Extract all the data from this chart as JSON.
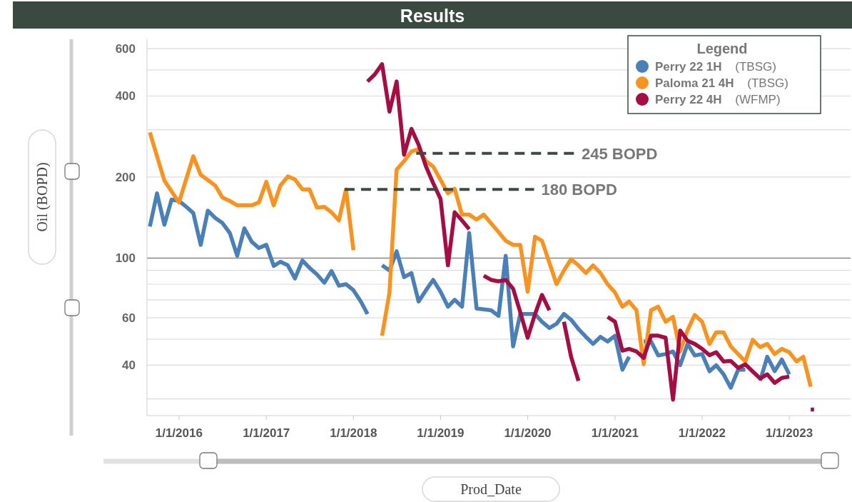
{
  "chart_data": {
    "type": "line",
    "title": "Results",
    "xlabel": "Prod_Date",
    "ylabel": "Oil (BOPD)",
    "legend_title": "Legend",
    "legend": "top right",
    "grid": "y",
    "log": "y",
    "line_style": "solid",
    "marker": "none",
    "xlim": [
      "2015-08-20",
      "2023-09-15"
    ],
    "xticks": [
      {
        "value": "2016-01-01",
        "label": "1/1/2016"
      },
      {
        "value": "2017-01-01",
        "label": "1/1/2017"
      },
      {
        "value": "2018-01-01",
        "label": "1/1/2018"
      },
      {
        "value": "2019-01-01",
        "label": "1/1/2019"
      },
      {
        "value": "2020-01-01",
        "label": "1/1/2020"
      },
      {
        "value": "2021-01-01",
        "label": "1/1/2021"
      },
      {
        "value": "2022-01-01",
        "label": "1/1/2022"
      },
      {
        "value": "2023-01-01",
        "label": "1/1/2023"
      }
    ],
    "ylim": [
      26,
      650
    ],
    "yticks": [
      {
        "value": 30,
        "label": null
      },
      40,
      {
        "value": 50,
        "label": null
      },
      60,
      {
        "value": 70,
        "label": null
      },
      {
        "value": 80,
        "label": null
      },
      {
        "value": 90,
        "label": null
      },
      100,
      200,
      {
        "value": 300,
        "label": null
      },
      400,
      {
        "value": 500,
        "label": null
      },
      600
    ],
    "ref_lines": [
      {
        "axis": "y",
        "value": 100,
        "color": "#8c8c8c"
      }
    ],
    "annotations": [
      {
        "text": "245 BOPD",
        "x": "2020-07-15",
        "y": 245
      },
      {
        "text": "180 BOPD",
        "x": "2020-01-28",
        "y": 180
      }
    ],
    "series": [
      {
        "name": "Perry 22 1H (TBSG)",
        "color": "#4a80b8",
        "x": [
          "2015-09",
          "2015-10",
          "2015-11",
          "2015-12",
          "2016-01",
          "2016-02",
          "2016-03",
          "2016-04",
          "2016-05",
          "2016-06",
          "2016-07",
          "2016-08",
          "2016-09",
          "2016-10",
          "2016-11",
          "2016-12",
          "2017-01",
          "2017-02",
          "2017-03",
          "2017-04",
          "2017-05",
          "2017-06",
          "2017-07",
          "2017-08",
          "2017-09",
          "2017-10",
          "2017-11",
          "2017-12",
          "2018-01",
          "2018-02",
          "2018-03",
          "2018-04",
          "2018-05",
          "2018-06",
          "2018-07",
          "2018-08",
          "2018-09",
          "2018-10",
          "2018-11",
          "2018-12",
          "2019-01",
          "2019-02",
          "2019-03",
          "2019-04",
          "2019-05",
          "2019-06",
          "2019-07",
          "2019-08",
          "2019-09",
          "2019-10",
          "2019-11",
          "2019-12",
          "2020-01",
          "2020-02",
          "2020-03",
          "2020-04",
          "2020-05",
          "2020-06",
          "2020-07",
          "2020-08",
          "2020-09",
          "2020-10",
          "2020-11",
          "2020-12",
          "2021-01",
          "2021-02",
          "2021-03",
          "2021-04",
          "2021-05",
          "2021-06",
          "2021-07",
          "2021-08",
          "2021-09",
          "2021-10",
          "2021-11",
          "2021-12",
          "2022-01",
          "2022-02",
          "2022-03",
          "2022-04",
          "2022-05",
          "2022-06",
          "2022-07",
          "2022-08",
          "2022-09",
          "2022-10",
          "2022-11",
          "2022-12",
          "2023-01"
        ],
        "values": [
          131,
          174,
          133,
          165,
          163,
          155,
          147,
          112,
          150,
          141,
          135,
          124,
          102,
          129,
          115,
          109,
          112,
          93.5,
          97,
          94,
          84,
          98,
          92,
          87,
          81,
          89.5,
          79,
          80,
          76,
          69,
          62,
          null,
          94,
          90,
          106,
          85,
          88,
          69,
          76,
          83,
          75,
          66,
          70,
          66,
          124,
          65,
          64.5,
          64,
          61,
          102,
          47,
          62,
          62,
          62,
          58,
          55,
          57,
          62,
          59,
          54.5,
          51,
          48,
          51,
          49,
          51.5,
          38.5,
          43,
          null,
          49,
          49,
          43.5,
          44,
          45,
          40,
          48,
          43.5,
          44,
          38,
          40,
          37,
          33,
          38.5,
          38.5,
          null,
          35,
          43,
          38,
          42,
          37
        ]
      },
      {
        "name": "Paloma 21 4H (TBSG)",
        "color": "#f7931e",
        "x": [
          "2015-09",
          "2015-10",
          "2015-11",
          "2016-01",
          "2016-03",
          "2016-04",
          "2016-06",
          "2016-07",
          "2016-08",
          "2016-09",
          "2016-11",
          "2016-12",
          "2017-01",
          "2017-02",
          "2017-03",
          "2017-04",
          "2017-05",
          "2017-06",
          "2017-07",
          "2017-08",
          "2017-09",
          "2017-10",
          "2017-11",
          "2017-12",
          "2018-01",
          "2018-03",
          "2018-05",
          "2018-06",
          "2018-07",
          "2018-08",
          "2018-09",
          "2018-10",
          "2018-11",
          "2018-12",
          "2019-02",
          "2019-03",
          "2019-04",
          "2019-05",
          "2019-06",
          "2019-07",
          "2019-09",
          "2019-10",
          "2019-11",
          "2019-12",
          "2020-01",
          "2020-02",
          "2020-03",
          "2020-05",
          "2020-06",
          "2020-07",
          "2020-08",
          "2020-09",
          "2020-10",
          "2020-11",
          "2020-12",
          "2021-01",
          "2021-02",
          "2021-03",
          "2021-04",
          "2021-05",
          "2021-06",
          "2021-07",
          "2021-08",
          "2021-09",
          "2021-10",
          "2021-11",
          "2021-12",
          "2022-01",
          "2022-02",
          "2022-03",
          "2022-04",
          "2022-05",
          "2022-06",
          "2022-07",
          "2022-08",
          "2022-09",
          "2022-10",
          "2022-11",
          "2022-12",
          "2023-01",
          "2023-02",
          "2023-03",
          "2023-04"
        ],
        "values": [
          293,
          239,
          194,
          161,
          239,
          204,
          186,
          168,
          163,
          157,
          157,
          161,
          192,
          157,
          186,
          201,
          196,
          180,
          180,
          154,
          155,
          148,
          138,
          180,
          107,
          null,
          51.5,
          74.5,
          213,
          229,
          249,
          254,
          229,
          219,
          174,
          181,
          145,
          145,
          139,
          145,
          125,
          116,
          112,
          112,
          75,
          120,
          116,
          80,
          90,
          99,
          94,
          88,
          94,
          88,
          80,
          74.5,
          66,
          69,
          64,
          40.3,
          64,
          66,
          58,
          60.5,
          45,
          54,
          61.5,
          58,
          48,
          53,
          53,
          47,
          44,
          41.3,
          49.7,
          46.7,
          48,
          44,
          46,
          44.7,
          41.3,
          43,
          33.3
        ]
      },
      {
        "name": "Perry 22 4H (WFMP)",
        "color": "#a50d45",
        "x": [
          "2018-03",
          "2018-04",
          "2018-05",
          "2018-06",
          "2018-07",
          "2018-08",
          "2018-09",
          "2018-10",
          "2018-11",
          "2018-12",
          "2019-01",
          "2019-02",
          "2019-03",
          "2019-04",
          "2019-05",
          "2019-06",
          "2019-07",
          "2019-08",
          "2019-09",
          "2019-10",
          "2019-11",
          "2019-12",
          "2020-01",
          "2020-02",
          "2020-03",
          "2020-04",
          "2020-05",
          "2020-06",
          "2020-07",
          "2020-08",
          "2020-09",
          "2020-12",
          "2021-01",
          "2021-02",
          "2021-03",
          "2021-04",
          "2021-05",
          "2021-06",
          "2021-07",
          "2021-08",
          "2021-09",
          "2021-10",
          "2021-11",
          "2021-12",
          "2022-01",
          "2022-02",
          "2022-03",
          "2022-04",
          "2022-05",
          "2022-06",
          "2022-07",
          "2022-08",
          "2022-09",
          "2022-10",
          "2022-11",
          "2022-12",
          "2023-01",
          "2023-02",
          "2023-04-01",
          "2023-04-15"
        ],
        "values": [
          453,
          482,
          525,
          350,
          453,
          242,
          302,
          264,
          219,
          190,
          166,
          94,
          148,
          138,
          128,
          null,
          86,
          83,
          82,
          83,
          77,
          63,
          50.6,
          62,
          73,
          64,
          null,
          58,
          43,
          35,
          null,
          60.5,
          58,
          45.3,
          46,
          45,
          42.6,
          51.5,
          51.5,
          50.6,
          29.8,
          53.8,
          49.3,
          48,
          46,
          43.6,
          44.7,
          41.3,
          41.5,
          39.1,
          40.3,
          37.9,
          35.7,
          37,
          34.4,
          35.9,
          36.3,
          null,
          27.4,
          27.4
        ]
      },
      {
        "color": "#3d4a44",
        "line_style": "dashed",
        "x": [
          "2018-09-21",
          "2020-07-15"
        ],
        "values": [
          245,
          245
        ]
      },
      {
        "color": "#3d4a44",
        "line_style": "dashed",
        "x": [
          "2017-11-25",
          "2020-01-28"
        ],
        "values": [
          180,
          180
        ]
      }
    ]
  }
}
